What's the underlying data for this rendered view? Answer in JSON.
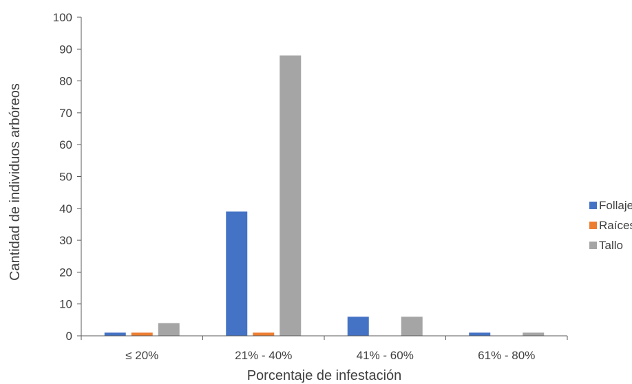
{
  "chart_data": {
    "type": "bar",
    "categories": [
      "≤ 20%",
      "21% - 40%",
      "41% - 60%",
      "61% - 80%"
    ],
    "series": [
      {
        "name": "Follaje",
        "values": [
          1,
          39,
          6,
          1
        ],
        "color": "#4472C4"
      },
      {
        "name": "Raíces",
        "values": [
          1,
          1,
          0,
          0
        ],
        "color": "#ED7D31"
      },
      {
        "name": "Tallo",
        "values": [
          4,
          88,
          6,
          1
        ],
        "color": "#A5A5A5"
      }
    ],
    "xlabel": "Porcentaje de infestación",
    "ylabel": "Cantidad de individuos arbóreos",
    "ylim": [
      0,
      100
    ],
    "yticks": [
      0,
      10,
      20,
      30,
      40,
      50,
      60,
      70,
      80,
      90,
      100
    ],
    "grid": false,
    "legend_position": "right"
  }
}
